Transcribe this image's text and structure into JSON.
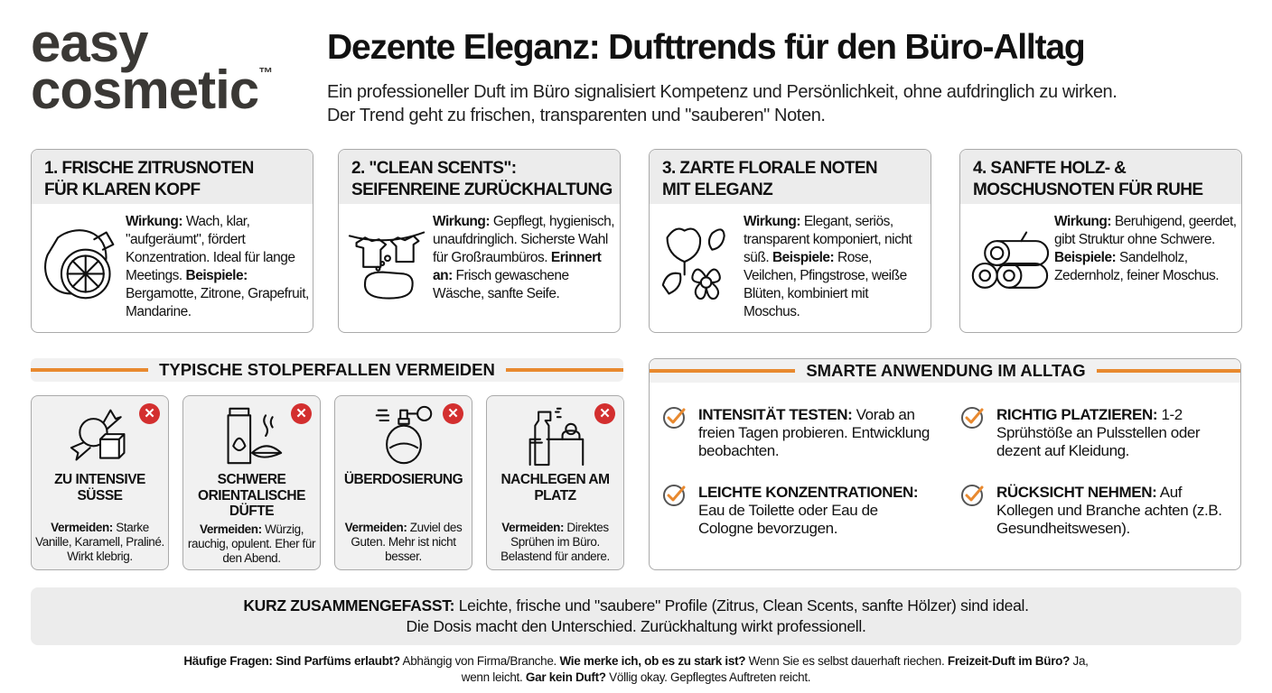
{
  "logo": {
    "line1": "easy",
    "line2": "cosmetic",
    "tm": "™"
  },
  "header": {
    "title": "Dezente Eleganz: Dufttrends für den Büro-Alltag",
    "subtitle_1": "Ein professioneller Duft im Büro signalisiert Kompetenz und Persönlichkeit, ohne aufdringlich zu wirken.",
    "subtitle_2": "Der Trend geht zu frischen, transparenten und \"sauberen\" Noten."
  },
  "colors": {
    "accent": "#e8892f",
    "warning": "#d32f2f",
    "panel_grey": "#ececec"
  },
  "trends": [
    {
      "title_1": "1. FRISCHE ZITRUSNOTEN",
      "title_2": "FÜR KLAREN KOPF",
      "icon": "lemon-icon",
      "parts": [
        {
          "b": "Wirkung:",
          "t": " Wach, klar, \"aufgeräumt\", fördert Konzentration. Ideal für lange Meetings. "
        },
        {
          "b": "Beispiele:",
          "t": " Bergamotte, Zitrone, Grapefruit, Mandarine."
        }
      ]
    },
    {
      "title_1": "2. \"CLEAN SCENTS\":",
      "title_2": "SEIFENREINE ZURÜCKHALTUNG",
      "icon": "laundry-soap-icon",
      "parts": [
        {
          "b": "Wirkung:",
          "t": " Gepflegt, hygienisch, unaufdringlich. Sicherste Wahl für Großraumbüros. "
        },
        {
          "b": "Erinnert an:",
          "t": " Frisch gewaschene Wäsche, sanfte Seife."
        }
      ]
    },
    {
      "title_1": "3. ZARTE FLORALE NOTEN",
      "title_2": "MIT ELEGANZ",
      "icon": "flowers-icon",
      "parts": [
        {
          "b": "Wirkung:",
          "t": " Elegant, seriös, transparent komponiert, nicht süß. "
        },
        {
          "b": "Beispiele:",
          "t": " Rose, Veilchen, Pfingstrose, weiße Blüten, kombiniert mit Moschus."
        }
      ]
    },
    {
      "title_1": "4. SANFTE HOLZ- &",
      "title_2": "MOSCHUSNOTEN FÜR RUHE",
      "icon": "logs-icon",
      "parts": [
        {
          "b": "Wirkung:",
          "t": " Beruhigend, geerdet, gibt Struktur ohne Schwere. "
        },
        {
          "b": "Beispiele:",
          "t": " Sandelholz, Zedernholz, feiner Moschus."
        }
      ]
    }
  ],
  "pitfalls": {
    "heading": "TYPISCHE STOLPERFALLEN VERMEIDEN",
    "items": [
      {
        "title": "ZU INTENSIVE SÜSSE",
        "label": "Vermeiden:",
        "text": " Starke Vanille, Karamell, Praliné. Wirkt klebrig.",
        "icon": "candy-sugar-icon"
      },
      {
        "title": "SCHWERE ORIENTALISCHE DÜFTE",
        "label": "Vermeiden:",
        "text": " Würzig, rauchig, opulent. Eher für den Abend.",
        "icon": "spice-bottle-icon"
      },
      {
        "title": "ÜBERDOSIERUNG",
        "label": "Vermeiden:",
        "text": " Zuviel des Guten. Mehr ist nicht besser.",
        "icon": "perfume-bottle-icon"
      },
      {
        "title": "NACHLEGEN AM PLATZ",
        "label": "Vermeiden:",
        "text": " Direktes Sprühen im Büro. Belastend für andere.",
        "icon": "spray-desk-icon"
      }
    ]
  },
  "usage": {
    "heading": "SMARTE ANWENDUNG IM ALLTAG",
    "items": [
      {
        "b": "INTENSITÄT TESTEN:",
        "t": " Vorab an freien Tagen probieren. Entwicklung beobachten."
      },
      {
        "b": "RICHTIG PLATZIEREN:",
        "t": " 1-2 Sprühstöße an Pulsstellen oder dezent auf Kleidung."
      },
      {
        "b": "LEICHTE KONZENTRATIONEN:",
        "t": " Eau de Toilette oder Eau de Cologne bevorzugen."
      },
      {
        "b": "RÜCKSICHT NEHMEN:",
        "t": " Auf Kollegen und Branche achten (z.B. Gesundheitswesen)."
      }
    ]
  },
  "summary": {
    "label": "KURZ ZUSAMMENGEFASST:",
    "line1": " Leichte, frische und \"saubere\" Profile (Zitrus, Clean Scents, sanfte Hölzer) sind ideal.",
    "line2": "Die Dosis macht den Unterschied. Zurückhaltung wirkt professionell."
  },
  "faq": [
    {
      "b": "Häufige Fragen: Sind Parfüms erlaubt?",
      "t": " Abhängig von Firma/Branche. "
    },
    {
      "b": "Wie merke ich, ob es zu stark ist?",
      "t": " Wenn Sie es selbst dauerhaft riechen. "
    },
    {
      "b": "Freizeit-Duft im Büro?",
      "t": " Ja, wenn leicht. "
    },
    {
      "b": "Gar kein Duft?",
      "t": " Völlig okay. Gepflegtes Auftreten reicht."
    }
  ]
}
